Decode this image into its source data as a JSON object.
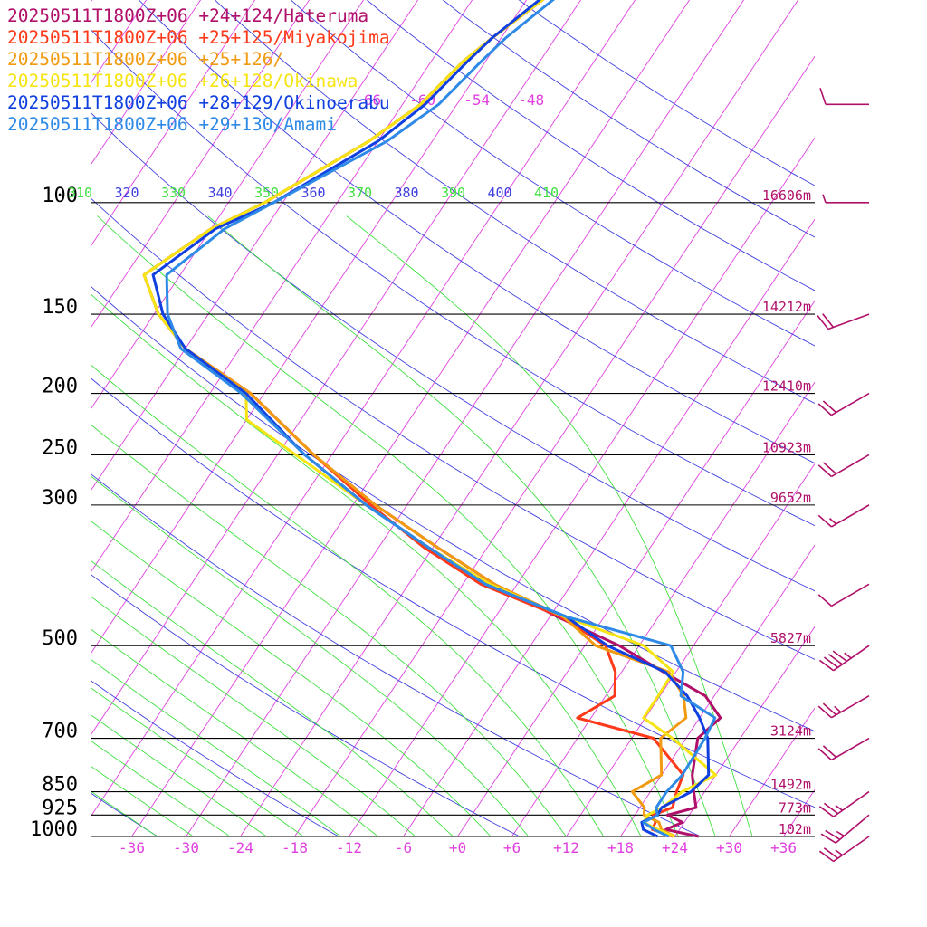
{
  "chart_data": {
    "type": "line",
    "colors": {
      "isobar": "#000000",
      "isotherm": "#e040e0",
      "dry_adiabat": "#4040e0",
      "moist_adiabat": "#40e040",
      "wind_barb": "#b0106a"
    },
    "pressure_levels": [
      {
        "p": 100,
        "label": "100",
        "height": "16606m"
      },
      {
        "p": 150,
        "label": "150",
        "height": "14212m"
      },
      {
        "p": 200,
        "label": "200",
        "height": "12410m"
      },
      {
        "p": 250,
        "label": "250",
        "height": "10923m"
      },
      {
        "p": 300,
        "label": "300",
        "height": "9652m"
      },
      {
        "p": 500,
        "label": "500",
        "height": "5827m"
      },
      {
        "p": 700,
        "label": "700",
        "height": "3124m"
      },
      {
        "p": 850,
        "label": "850",
        "height": "1492m"
      },
      {
        "p": 925,
        "label": "925",
        "height": "773m"
      },
      {
        "p": 1000,
        "label": "1000",
        "height": "102m"
      }
    ],
    "x_ticks": [
      "-36",
      "-30",
      "-24",
      "-18",
      "-12",
      "-6",
      "+0",
      "+6",
      "+12",
      "+18",
      "+24",
      "+30",
      "+36"
    ],
    "x_tick_values": [
      -36,
      -30,
      -24,
      -18,
      -12,
      -6,
      0,
      6,
      12,
      18,
      24,
      30,
      36
    ],
    "upper_temp_labels": [
      {
        "t": -66,
        "label": "-66"
      },
      {
        "t": -60,
        "label": "-60"
      },
      {
        "t": -54,
        "label": "-54"
      },
      {
        "t": -48,
        "label": "-48"
      }
    ],
    "theta_labels": [
      {
        "k": 310,
        "label": "310",
        "kind": "moist"
      },
      {
        "k": 320,
        "label": "320",
        "kind": "dry"
      },
      {
        "k": 330,
        "label": "330",
        "kind": "moist"
      },
      {
        "k": 340,
        "label": "340",
        "kind": "dry"
      },
      {
        "k": 350,
        "label": "350",
        "kind": "moist"
      },
      {
        "k": 360,
        "label": "360",
        "kind": "dry"
      },
      {
        "k": 370,
        "label": "370",
        "kind": "moist"
      },
      {
        "k": 380,
        "label": "380",
        "kind": "dry"
      },
      {
        "k": 390,
        "label": "390",
        "kind": "moist"
      },
      {
        "k": 400,
        "label": "400",
        "kind": "dry"
      },
      {
        "k": 410,
        "label": "410",
        "kind": "moist"
      }
    ],
    "series": [
      {
        "name": "20250511T1800Z+06 +24+124/Hateruma",
        "color": "#b0106a",
        "points": [
          [
            1000,
            26.6
          ],
          [
            975,
            22.5
          ],
          [
            950,
            23.8
          ],
          [
            925,
            21.6
          ],
          [
            900,
            24.2
          ],
          [
            850,
            22.8
          ],
          [
            800,
            21.4
          ],
          [
            700,
            19.3
          ],
          [
            650,
            20.3
          ],
          [
            600,
            17.0
          ],
          [
            550,
            10.6
          ],
          [
            500,
            3.8
          ],
          [
            450,
            -5.2
          ],
          [
            400,
            -14.5
          ],
          [
            350,
            -23.5
          ],
          [
            300,
            -33.5
          ],
          [
            250,
            -44.0
          ],
          [
            200,
            -55.5
          ],
          [
            170,
            -66.0
          ],
          [
            150,
            -71.5
          ],
          [
            130,
            -76.0
          ],
          [
            110,
            -72.0
          ],
          [
            100,
            -68.0
          ],
          [
            80,
            -61.0
          ],
          [
            70,
            -58.0
          ],
          [
            60,
            -56.5
          ],
          [
            55,
            -55.0
          ],
          [
            45,
            -51.0
          ]
        ]
      },
      {
        "name": "20250511T1800Z+06 +25+125/Miyakojima",
        "color": "#ff3a1a",
        "points": [
          [
            1000,
            23.8
          ],
          [
            975,
            21.0
          ],
          [
            950,
            20.8
          ],
          [
            925,
            20.0
          ],
          [
            900,
            21.6
          ],
          [
            850,
            20.9
          ],
          [
            800,
            20.4
          ],
          [
            700,
            14.4
          ],
          [
            650,
            4.5
          ],
          [
            600,
            7.0
          ],
          [
            550,
            5.3
          ],
          [
            500,
            2.3
          ],
          [
            450,
            -4.8
          ],
          [
            400,
            -16.0
          ],
          [
            350,
            -25.0
          ],
          [
            300,
            -34.0
          ],
          [
            250,
            -44.0
          ],
          [
            200,
            -55.5
          ],
          [
            170,
            -66.0
          ],
          [
            150,
            -71.5
          ],
          [
            130,
            -76.0
          ],
          [
            110,
            -72.0
          ],
          [
            100,
            -68.0
          ],
          [
            80,
            -61.0
          ],
          [
            70,
            -58.0
          ],
          [
            60,
            -56.5
          ],
          [
            55,
            -55.0
          ],
          [
            45,
            -51.0
          ]
        ]
      },
      {
        "name": "20250511T1800Z+06 +25+126/",
        "color": "#f29a10",
        "points": [
          [
            1000,
            24.0
          ],
          [
            975,
            22.0
          ],
          [
            950,
            21.2
          ],
          [
            925,
            19.0
          ],
          [
            900,
            18.5
          ],
          [
            850,
            16.0
          ],
          [
            800,
            18.0
          ],
          [
            700,
            15.2
          ],
          [
            650,
            16.5
          ],
          [
            600,
            14.6
          ],
          [
            550,
            11.2
          ],
          [
            500,
            1.2
          ],
          [
            450,
            -4.5
          ],
          [
            400,
            -14.5
          ],
          [
            350,
            -23.5
          ],
          [
            300,
            -33.5
          ],
          [
            250,
            -44.0
          ],
          [
            200,
            -55.5
          ],
          [
            170,
            -66.0
          ],
          [
            150,
            -71.5
          ],
          [
            130,
            -76.0
          ],
          [
            110,
            -72.0
          ],
          [
            100,
            -68.0
          ],
          [
            80,
            -61.0
          ],
          [
            70,
            -58.0
          ],
          [
            60,
            -56.5
          ],
          [
            55,
            -55.0
          ],
          [
            45,
            -51.0
          ]
        ]
      },
      {
        "name": "20250511T1800Z+06 +26+128/Okinawa",
        "color": "#f6e414",
        "points": [
          [
            1000,
            23.9
          ],
          [
            975,
            21.6
          ],
          [
            950,
            19.5
          ],
          [
            925,
            19.4
          ],
          [
            900,
            20.5
          ],
          [
            850,
            21.5
          ],
          [
            800,
            24.0
          ],
          [
            700,
            16.5
          ],
          [
            650,
            11.8
          ],
          [
            600,
            11.8
          ],
          [
            550,
            11.7
          ],
          [
            500,
            6.5
          ],
          [
            450,
            -4.4
          ],
          [
            400,
            -15.0
          ],
          [
            350,
            -24.5
          ],
          [
            300,
            -34.5
          ],
          [
            250,
            -46.0
          ],
          [
            220,
            -54.0
          ],
          [
            200,
            -56.0
          ],
          [
            170,
            -66.0
          ],
          [
            150,
            -71.5
          ],
          [
            130,
            -76.0
          ],
          [
            110,
            -72.0
          ],
          [
            100,
            -68.0
          ],
          [
            80,
            -61.0
          ],
          [
            70,
            -58.0
          ],
          [
            60,
            -56.5
          ],
          [
            55,
            -55.0
          ],
          [
            45,
            -51.0
          ]
        ]
      },
      {
        "name": "20250511T1800Z+06 +28+129/Okinoerabu",
        "color": "#1040e0",
        "points": [
          [
            1000,
            22.1
          ],
          [
            975,
            20.0
          ],
          [
            950,
            19.3
          ],
          [
            925,
            20.5
          ],
          [
            900,
            20.4
          ],
          [
            850,
            22.5
          ],
          [
            800,
            23.2
          ],
          [
            700,
            20.4
          ],
          [
            650,
            18.0
          ],
          [
            600,
            15.0
          ],
          [
            550,
            10.8
          ],
          [
            500,
            2.5
          ],
          [
            450,
            -4.2
          ],
          [
            400,
            -15.5
          ],
          [
            350,
            -24.5
          ],
          [
            300,
            -34.5
          ],
          [
            250,
            -45.0
          ],
          [
            200,
            -56.0
          ],
          [
            170,
            -66.0
          ],
          [
            150,
            -71.0
          ],
          [
            130,
            -75.0
          ],
          [
            110,
            -71.5
          ],
          [
            100,
            -67.0
          ],
          [
            80,
            -60.0
          ],
          [
            70,
            -57.5
          ],
          [
            60,
            -56.0
          ],
          [
            55,
            -55.0
          ],
          [
            45,
            -51.5
          ]
        ]
      },
      {
        "name": "20250511T1800Z+06 +29+130/Amami",
        "color": "#2e8ae6",
        "points": [
          [
            1000,
            23.3
          ],
          [
            975,
            21.2
          ],
          [
            950,
            19.5
          ],
          [
            925,
            20.5
          ],
          [
            900,
            19.8
          ],
          [
            850,
            19.8
          ],
          [
            800,
            20.3
          ],
          [
            700,
            20.1
          ],
          [
            650,
            19.7
          ],
          [
            600,
            14.3
          ],
          [
            550,
            12.8
          ],
          [
            500,
            9.5
          ],
          [
            450,
            -4.2
          ],
          [
            400,
            -15.5
          ],
          [
            350,
            -24.5
          ],
          [
            300,
            -34.5
          ],
          [
            250,
            -45.0
          ],
          [
            200,
            -56.5
          ],
          [
            170,
            -66.5
          ],
          [
            150,
            -70.5
          ],
          [
            130,
            -73.5
          ],
          [
            110,
            -70.5
          ],
          [
            100,
            -67.0
          ],
          [
            80,
            -59.0
          ],
          [
            70,
            -56.0
          ],
          [
            60,
            -54.5
          ],
          [
            55,
            -53.5
          ],
          [
            45,
            -50.0
          ]
        ]
      }
    ],
    "wind_barbs": [
      {
        "p": 1000,
        "speed_kt": 25,
        "dir": 235
      },
      {
        "p": 925,
        "speed_kt": 25,
        "dir": 230
      },
      {
        "p": 850,
        "speed_kt": 25,
        "dir": 235
      },
      {
        "p": 700,
        "speed_kt": 20,
        "dir": 240
      },
      {
        "p": 600,
        "speed_kt": 25,
        "dir": 240
      },
      {
        "p": 500,
        "speed_kt": 45,
        "dir": 235
      },
      {
        "p": 400,
        "speed_kt": 10,
        "dir": 240
      },
      {
        "p": 300,
        "speed_kt": 15,
        "dir": 240
      },
      {
        "p": 250,
        "speed_kt": 20,
        "dir": 240
      },
      {
        "p": 200,
        "speed_kt": 20,
        "dir": 240
      },
      {
        "p": 150,
        "speed_kt": 20,
        "dir": 250
      },
      {
        "p": 100,
        "speed_kt": 5,
        "dir": 270
      },
      {
        "p": 70,
        "speed_kt": 10,
        "dir": 270
      },
      {
        "p": 45,
        "speed_kt": 5,
        "dir": 285
      }
    ]
  }
}
